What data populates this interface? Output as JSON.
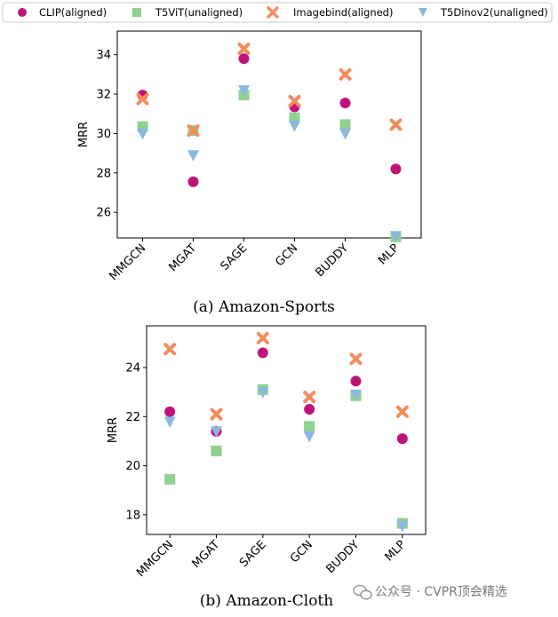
{
  "legend": [
    {
      "label": "CLIP(aligned)",
      "marker": "circle",
      "color": "#c0137a"
    },
    {
      "label": "T5ViT(unaligned)",
      "marker": "square",
      "color": "#8fd18f"
    },
    {
      "label": "Imagebind(aligned)",
      "marker": "x",
      "color": "#f58c5c"
    },
    {
      "label": "T5Dinov2(unaligned)",
      "marker": "triangle-down",
      "color": "#8ab8e0"
    }
  ],
  "watermark": "公众号 · CVPR顶会精选",
  "chart_data": [
    {
      "type": "scatter",
      "title": "(a) Amazon-Sports",
      "ylabel": "MRR",
      "xlabel": "",
      "categories": [
        "MMGCN",
        "MGAT",
        "SAGE",
        "GCN",
        "BUDDY",
        "MLP"
      ],
      "ylim": [
        24.7,
        35.2
      ],
      "yticks": [
        26,
        28,
        30,
        32,
        34
      ],
      "series": [
        {
          "name": "CLIP(aligned)",
          "values": [
            31.95,
            27.55,
            33.8,
            31.35,
            31.55,
            28.2
          ]
        },
        {
          "name": "T5ViT(unaligned)",
          "values": [
            30.35,
            30.15,
            31.95,
            30.8,
            30.45,
            24.75
          ]
        },
        {
          "name": "Imagebind(aligned)",
          "values": [
            31.75,
            30.15,
            34.3,
            31.65,
            33.0,
            30.45
          ]
        },
        {
          "name": "T5Dinov2(unaligned)",
          "values": [
            30.0,
            28.9,
            32.2,
            30.4,
            30.0,
            24.8
          ]
        }
      ]
    },
    {
      "type": "scatter",
      "title": "(b) Amazon-Cloth",
      "ylabel": "MRR",
      "xlabel": "",
      "categories": [
        "MMGCN",
        "MGAT",
        "SAGE",
        "GCN",
        "BUDDY",
        "MLP"
      ],
      "ylim": [
        17.2,
        25.7
      ],
      "yticks": [
        18,
        20,
        22,
        24
      ],
      "series": [
        {
          "name": "CLIP(aligned)",
          "values": [
            22.2,
            21.4,
            24.6,
            22.3,
            23.45,
            21.1
          ]
        },
        {
          "name": "T5ViT(unaligned)",
          "values": [
            19.45,
            20.6,
            23.1,
            21.6,
            22.85,
            17.65
          ]
        },
        {
          "name": "Imagebind(aligned)",
          "values": [
            24.75,
            22.1,
            25.2,
            22.8,
            24.35,
            22.2
          ]
        },
        {
          "name": "T5Dinov2(unaligned)",
          "values": [
            21.8,
            21.4,
            23.0,
            21.2,
            22.9,
            17.55
          ]
        }
      ]
    }
  ]
}
